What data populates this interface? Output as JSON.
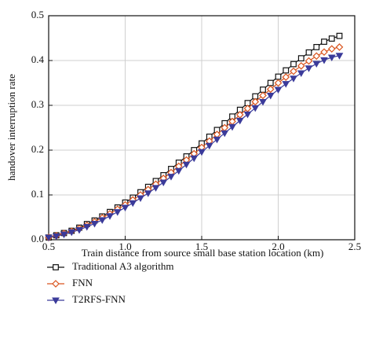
{
  "chart_data": {
    "type": "line",
    "xlabel": "Train distance from source small base station location (km)",
    "ylabel": "handover interruption rate",
    "x": [
      0.5,
      0.55,
      0.6,
      0.65,
      0.7,
      0.75,
      0.8,
      0.85,
      0.9,
      0.95,
      1.0,
      1.05,
      1.1,
      1.15,
      1.2,
      1.25,
      1.3,
      1.35,
      1.4,
      1.45,
      1.5,
      1.55,
      1.6,
      1.65,
      1.7,
      1.75,
      1.8,
      1.85,
      1.9,
      1.95,
      2.0,
      2.05,
      2.1,
      2.15,
      2.2,
      2.25,
      2.3,
      2.35,
      2.4
    ],
    "series": [
      {
        "name": "Traditional A3 algorithm",
        "color": "#111111",
        "marker": "square",
        "values": [
          0.005,
          0.01,
          0.015,
          0.02,
          0.027,
          0.035,
          0.043,
          0.052,
          0.062,
          0.072,
          0.083,
          0.094,
          0.106,
          0.118,
          0.131,
          0.144,
          0.158,
          0.172,
          0.186,
          0.2,
          0.215,
          0.23,
          0.245,
          0.26,
          0.275,
          0.29,
          0.305,
          0.32,
          0.335,
          0.35,
          0.364,
          0.378,
          0.392,
          0.405,
          0.418,
          0.43,
          0.442,
          0.449,
          0.455
        ]
      },
      {
        "name": "FNN",
        "color": "#d9541e",
        "marker": "diamond",
        "values": [
          0.005,
          0.009,
          0.014,
          0.019,
          0.025,
          0.032,
          0.04,
          0.049,
          0.058,
          0.068,
          0.078,
          0.089,
          0.1,
          0.112,
          0.124,
          0.137,
          0.15,
          0.164,
          0.178,
          0.192,
          0.206,
          0.22,
          0.235,
          0.25,
          0.264,
          0.279,
          0.293,
          0.308,
          0.322,
          0.336,
          0.35,
          0.363,
          0.376,
          0.388,
          0.399,
          0.41,
          0.419,
          0.426,
          0.43
        ]
      },
      {
        "name": "T2RFS-FNN",
        "color": "#3b3b9a",
        "marker": "triangle-down",
        "values": [
          0.005,
          0.008,
          0.012,
          0.017,
          0.022,
          0.029,
          0.036,
          0.044,
          0.053,
          0.062,
          0.072,
          0.082,
          0.093,
          0.104,
          0.116,
          0.128,
          0.141,
          0.154,
          0.168,
          0.182,
          0.196,
          0.21,
          0.224,
          0.238,
          0.252,
          0.266,
          0.28,
          0.294,
          0.308,
          0.322,
          0.335,
          0.348,
          0.36,
          0.372,
          0.383,
          0.393,
          0.401,
          0.407,
          0.411
        ]
      }
    ],
    "xlim": [
      0.5,
      2.5
    ],
    "xticks": [
      0.5,
      {
        "value": 1,
        "label": "1.0"
      },
      1.5,
      {
        "value": 2,
        "label": "2.0"
      },
      2.5
    ],
    "ylim": [
      0,
      0.5
    ],
    "yticks": [
      {
        "value": 0,
        "label": "0.0"
      },
      0.1,
      0.2,
      0.3,
      0.4,
      0.5
    ],
    "grid": true
  }
}
